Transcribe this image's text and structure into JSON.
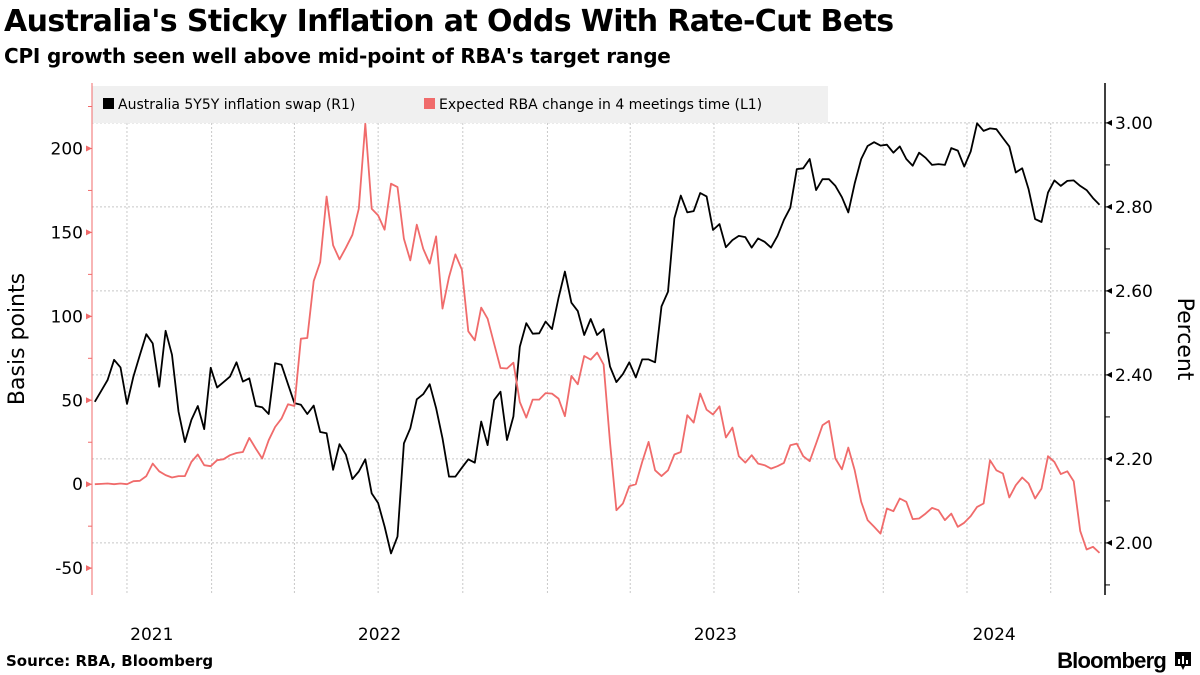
{
  "header": {
    "title": "Australia's Sticky Inflation at Odds With Rate-Cut Bets",
    "subtitle": "CPI growth seen well above mid-point of RBA's target range"
  },
  "footer": {
    "source": "Source: RBA, Bloomberg",
    "logo": "Bloomberg",
    "logo_icon": "bar-chart-badge-icon"
  },
  "chart_data": {
    "type": "line",
    "title": "Australia's Sticky Inflation at Odds With Rate-Cut Bets",
    "subtitle": "CPI growth seen well above mid-point of RBA's target range",
    "legend_placement": "top-left",
    "grid": true,
    "x_range": [
      "2021-08-24",
      "2024-08-29"
    ],
    "x_tick_labels": [
      "2021",
      "2022",
      "2023",
      "2024"
    ],
    "y_left": {
      "label": "Basis points",
      "range": [
        -66,
        239
      ],
      "ticks": [
        -50,
        0,
        50,
        100,
        150,
        200
      ],
      "tick_labels": [
        "-50",
        "0",
        "50",
        "100",
        "150",
        "200"
      ]
    },
    "y_right": {
      "label": "Percent",
      "range": [
        1.876,
        3.095
      ],
      "ticks": [
        2.0,
        2.2,
        2.4,
        2.6,
        2.8,
        3.0
      ],
      "tick_labels": [
        "2.00",
        "2.20",
        "2.40",
        "2.60",
        "2.80",
        "3.00"
      ]
    },
    "colors": {
      "swap": "#000000",
      "rba": "#f06b6b",
      "legend_bg": "#f0f0f0",
      "grid": "#c8c8c8"
    },
    "dates": [
      "2021-08-27",
      "2021-09-03",
      "2021-09-10",
      "2021-09-17",
      "2021-09-24",
      "2021-10-01",
      "2021-10-08",
      "2021-10-15",
      "2021-10-22",
      "2021-10-29",
      "2021-11-05",
      "2021-11-12",
      "2021-11-19",
      "2021-11-26",
      "2021-12-03",
      "2021-12-10",
      "2021-12-17",
      "2021-12-24",
      "2021-12-31",
      "2022-01-07",
      "2022-01-14",
      "2022-01-21",
      "2022-01-28",
      "2022-02-04",
      "2022-02-11",
      "2022-02-18",
      "2022-02-25",
      "2022-03-04",
      "2022-03-11",
      "2022-03-18",
      "2022-03-25",
      "2022-04-01",
      "2022-04-08",
      "2022-04-15",
      "2022-04-22",
      "2022-04-29",
      "2022-05-06",
      "2022-05-13",
      "2022-05-20",
      "2022-05-27",
      "2022-06-03",
      "2022-06-10",
      "2022-06-17",
      "2022-06-24",
      "2022-07-01",
      "2022-07-08",
      "2022-07-15",
      "2022-07-22",
      "2022-07-29",
      "2022-08-05",
      "2022-08-12",
      "2022-08-19",
      "2022-08-26",
      "2022-09-02",
      "2022-09-09",
      "2022-09-16",
      "2022-09-23",
      "2022-09-30",
      "2022-10-07",
      "2022-10-14",
      "2022-10-21",
      "2022-10-28",
      "2022-11-04",
      "2022-11-11",
      "2022-11-18",
      "2022-11-25",
      "2022-12-02",
      "2022-12-09",
      "2022-12-16",
      "2022-12-23",
      "2022-12-30",
      "2023-01-06",
      "2023-01-13",
      "2023-01-20",
      "2023-01-27",
      "2023-02-03",
      "2023-02-10",
      "2023-02-17",
      "2023-02-24",
      "2023-03-03",
      "2023-03-10",
      "2023-03-17",
      "2023-03-24",
      "2023-03-31",
      "2023-04-07",
      "2023-04-14",
      "2023-04-21",
      "2023-04-28",
      "2023-05-05",
      "2023-05-12",
      "2023-05-19",
      "2023-05-26",
      "2023-06-02",
      "2023-06-09",
      "2023-06-16",
      "2023-06-23",
      "2023-06-30",
      "2023-07-07",
      "2023-07-14",
      "2023-07-21",
      "2023-07-28",
      "2023-08-04",
      "2023-08-11",
      "2023-08-18",
      "2023-08-25",
      "2023-09-01",
      "2023-09-08",
      "2023-09-15",
      "2023-09-22",
      "2023-09-29",
      "2023-10-06",
      "2023-10-13",
      "2023-10-20",
      "2023-10-27",
      "2023-11-03",
      "2023-11-10",
      "2023-11-17",
      "2023-11-24",
      "2023-12-01",
      "2023-12-08",
      "2023-12-15",
      "2023-12-22",
      "2023-12-29",
      "2024-01-05",
      "2024-01-12",
      "2024-01-19",
      "2024-01-26",
      "2024-02-02",
      "2024-02-09",
      "2024-02-16",
      "2024-02-23",
      "2024-03-01",
      "2024-03-08",
      "2024-03-15",
      "2024-03-22",
      "2024-03-29",
      "2024-04-05",
      "2024-04-12",
      "2024-04-19",
      "2024-04-26",
      "2024-05-03",
      "2024-05-10",
      "2024-05-17",
      "2024-05-24",
      "2024-05-31",
      "2024-06-07",
      "2024-06-14",
      "2024-06-21",
      "2024-06-28",
      "2024-07-05",
      "2024-07-12",
      "2024-07-19",
      "2024-07-26",
      "2024-08-02",
      "2024-08-09",
      "2024-08-16",
      "2024-08-23"
    ],
    "series": [
      {
        "name": "Australia 5Y5Y inflation swap (R1)",
        "axis": "right",
        "unit": "Percent",
        "values": [
          2.336,
          2.362,
          2.388,
          2.436,
          2.418,
          2.331,
          2.396,
          2.447,
          2.497,
          2.475,
          2.372,
          2.505,
          2.448,
          2.313,
          2.24,
          2.293,
          2.326,
          2.271,
          2.417,
          2.37,
          2.383,
          2.396,
          2.43,
          2.384,
          2.392,
          2.326,
          2.323,
          2.307,
          2.428,
          2.424,
          2.378,
          2.333,
          2.329,
          2.307,
          2.327,
          2.264,
          2.261,
          2.174,
          2.235,
          2.21,
          2.152,
          2.17,
          2.199,
          2.118,
          2.095,
          2.039,
          1.975,
          2.015,
          2.237,
          2.273,
          2.342,
          2.354,
          2.378,
          2.321,
          2.249,
          2.158,
          2.158,
          2.179,
          2.199,
          2.191,
          2.289,
          2.233,
          2.34,
          2.36,
          2.245,
          2.301,
          2.467,
          2.523,
          2.498,
          2.499,
          2.527,
          2.509,
          2.583,
          2.646,
          2.572,
          2.552,
          2.495,
          2.533,
          2.495,
          2.509,
          2.42,
          2.383,
          2.402,
          2.43,
          2.394,
          2.437,
          2.437,
          2.43,
          2.563,
          2.598,
          2.773,
          2.827,
          2.787,
          2.79,
          2.833,
          2.825,
          2.745,
          2.759,
          2.704,
          2.721,
          2.731,
          2.728,
          2.703,
          2.725,
          2.717,
          2.703,
          2.731,
          2.769,
          2.798,
          2.89,
          2.892,
          2.914,
          2.84,
          2.866,
          2.866,
          2.85,
          2.823,
          2.787,
          2.856,
          2.914,
          2.945,
          2.954,
          2.946,
          2.948,
          2.929,
          2.944,
          2.914,
          2.898,
          2.929,
          2.917,
          2.9,
          2.902,
          2.9,
          2.94,
          2.934,
          2.896,
          2.932,
          2.999,
          2.981,
          2.987,
          2.985,
          2.964,
          2.944,
          2.882,
          2.892,
          2.842,
          2.771,
          2.764,
          2.834,
          2.863,
          2.85,
          2.862,
          2.863,
          2.85,
          2.84,
          2.821,
          2.805
        ]
      },
      {
        "name": "Expected RBA change in 4 meetings time (L1)",
        "axis": "left",
        "unit": "Basis points",
        "values": [
          0,
          0.2,
          0.4,
          0,
          0.4,
          0,
          1.8,
          2,
          4.8,
          12.3,
          7.7,
          5.4,
          4,
          4.8,
          4.8,
          13.3,
          17.7,
          11.3,
          10.7,
          14.3,
          14.9,
          17.3,
          18.6,
          19.2,
          27.6,
          21.2,
          15.3,
          26.2,
          34.1,
          39.1,
          47.6,
          46.6,
          86.7,
          87.1,
          121,
          132.3,
          171.4,
          142.3,
          133.9,
          140.9,
          148.6,
          164.1,
          214.7,
          164.1,
          160.1,
          151.6,
          179,
          177,
          146.2,
          133.3,
          154.6,
          140.3,
          131.4,
          147.6,
          104.6,
          123.4,
          136.9,
          127.8,
          91.1,
          85.7,
          105.2,
          98.6,
          83.7,
          69.2,
          68.9,
          72.4,
          49,
          39.7,
          50.4,
          50.4,
          54.3,
          54,
          51,
          40.5,
          64.5,
          59.5,
          76.4,
          74.2,
          78.4,
          71.3,
          25,
          -15.5,
          -11.5,
          -1.2,
          0,
          13.3,
          25.2,
          8.3,
          4.8,
          8.3,
          17.7,
          19.2,
          41.1,
          36.7,
          54,
          44.4,
          41.5,
          46.4,
          27.8,
          33.7,
          16.7,
          12.9,
          17.3,
          12.3,
          11.3,
          9.3,
          10.7,
          12.7,
          23.2,
          24.2,
          16.7,
          13.7,
          24.2,
          35.1,
          37.7,
          15.3,
          8.9,
          21.8,
          8.3,
          -10.5,
          -21.4,
          -25.4,
          -29.4,
          -14.5,
          -16.1,
          -8.5,
          -10.5,
          -20.8,
          -20.4,
          -17.5,
          -14.1,
          -15.5,
          -21.4,
          -17.5,
          -25.4,
          -23,
          -19,
          -13.5,
          -11.5,
          14.3,
          8.3,
          6.4,
          -7.9,
          -0.6,
          4,
          0.4,
          -8.5,
          -2.6,
          16.7,
          13.3,
          6,
          7.7,
          1.8,
          -27.8,
          -38.9,
          -37.3,
          -40.9
        ]
      }
    ]
  }
}
